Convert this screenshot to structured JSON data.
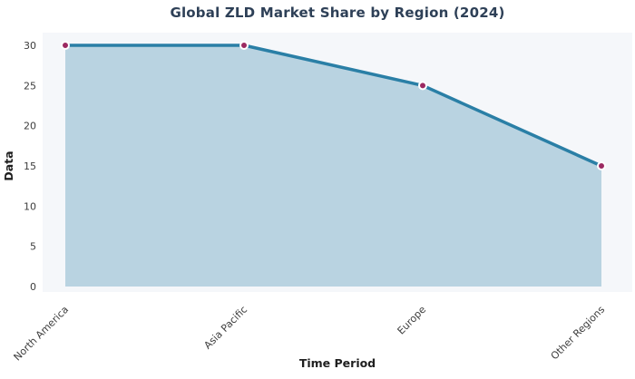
{
  "chart_data": {
    "type": "area",
    "title": "Global ZLD Market Share by Region (2024)",
    "categories": [
      "North America",
      "Asia Pacific",
      "Europe",
      "Other Regions"
    ],
    "values": [
      30,
      30,
      25,
      15
    ],
    "xlabel": "Time Period",
    "ylabel": "Data",
    "ylim": [
      0,
      30
    ],
    "yticks": [
      0,
      5,
      10,
      15,
      20,
      25,
      30
    ],
    "grid": false,
    "legend": false,
    "x_tick_rotation_deg": 45,
    "colors": {
      "line": "#2a7fa6",
      "area": "#b9d3e1",
      "marker": "#9c2a62",
      "marker_ring": "#ffffff",
      "plot_bg": "#f5f7fa",
      "title": "#2e4057",
      "tick": "#3d3d3d",
      "axis_label": "#1f1f1f",
      "page_bg": "#ffffff"
    }
  }
}
